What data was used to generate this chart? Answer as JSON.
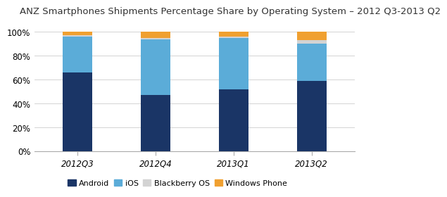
{
  "title": "ANZ Smartphones Shipments Percentage Share by Operating System – 2012 Q3-2013 Q2",
  "categories": [
    "2012Q3",
    "2012Q4",
    "2013Q1",
    "2013Q2"
  ],
  "series": {
    "Android": [
      66,
      47,
      52,
      59
    ],
    "iOS": [
      30,
      47,
      43,
      31
    ],
    "Blackberry OS": [
      1,
      1,
      1,
      3
    ],
    "Windows Phone": [
      3,
      5,
      4,
      7
    ]
  },
  "colors": {
    "Android": "#1a3566",
    "iOS": "#5bacd8",
    "Blackberry OS": "#d3d3d3",
    "Windows Phone": "#f0a030"
  },
  "legend_order": [
    "Android",
    "iOS",
    "Blackberry OS",
    "Windows Phone"
  ],
  "ylim": [
    0,
    100
  ],
  "yticks": [
    0,
    20,
    40,
    60,
    80,
    100
  ],
  "ytick_labels": [
    "0%",
    "20%",
    "40%",
    "60%",
    "80%",
    "100%"
  ],
  "title_fontsize": 9.5,
  "tick_fontsize": 8.5,
  "legend_fontsize": 8,
  "bar_width": 0.38,
  "background_color": "#ffffff"
}
